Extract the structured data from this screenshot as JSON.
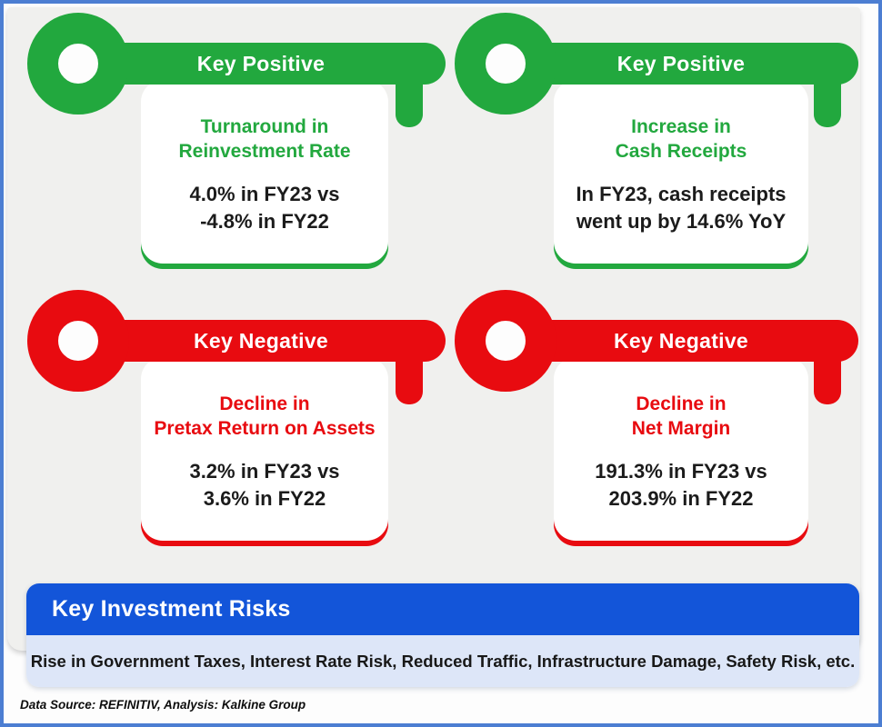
{
  "colors": {
    "positive_green": "#22a83e",
    "negative_red": "#e80b10",
    "risks_header_blue": "#1355d9",
    "risks_body_blue": "#dde6f8",
    "frame_border_blue": "#4c7ed2",
    "panel_gray": "#f0f0ee",
    "card_white": "#ffffff",
    "value_text": "#1b1b1b"
  },
  "icons": {
    "key_shape": "key-icon (bow ring + shaft + tooth, css silhouette)"
  },
  "cards": [
    {
      "id": "top-left",
      "sentiment": "positive",
      "header": "Key Positive",
      "title_line1": "Turnaround in",
      "title_line2": "Reinvestment Rate",
      "value_line1": "4.0% in FY23 vs",
      "value_line2": "-4.8% in FY22",
      "accent": "#22a83e"
    },
    {
      "id": "top-right",
      "sentiment": "positive",
      "header": "Key Positive",
      "title_line1": "Increase in",
      "title_line2": "Cash Receipts",
      "value_line1": "In FY23, cash receipts",
      "value_line2": "went up by 14.6% YoY",
      "accent": "#22a83e"
    },
    {
      "id": "bottom-left",
      "sentiment": "negative",
      "header": "Key Negative",
      "title_line1": "Decline in",
      "title_line2": "Pretax Return on Assets",
      "value_line1": "3.2% in FY23 vs",
      "value_line2": "3.6% in FY22",
      "accent": "#e80b10"
    },
    {
      "id": "bottom-right",
      "sentiment": "negative",
      "header": "Key Negative",
      "title_line1": "Decline in",
      "title_line2": "Net Margin",
      "value_line1": "191.3% in FY23 vs",
      "value_line2": "203.9% in FY22",
      "accent": "#e80b10"
    }
  ],
  "risks": {
    "title": "Key Investment Risks",
    "body": "Rise in Government Taxes, Interest Rate Risk, Reduced Traffic, Infrastructure Damage, Safety Risk, etc."
  },
  "footer": {
    "text": "Data Source: REFINITIV, Analysis: Kalkine Group"
  }
}
